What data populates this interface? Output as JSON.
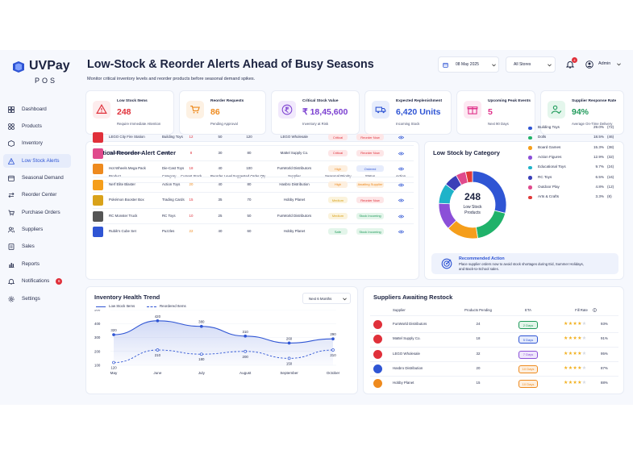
{
  "app": {
    "brand": "UVPay",
    "sub": "POS"
  },
  "header": {
    "title": "Low-Stock & Reorder Alerts Ahead of Busy Seasons",
    "subtitle": "Monitor critical inventory levels and reorder products before seasonal demand spikes.",
    "date": "08 May 2025",
    "store": "All Stores",
    "notif_count": "4",
    "user": "Admin"
  },
  "sidebar": {
    "items": [
      {
        "label": "Dashboard",
        "icon": "dashboard-icon"
      },
      {
        "label": "Products",
        "icon": "products-icon"
      },
      {
        "label": "Inventory",
        "icon": "inventory-icon"
      },
      {
        "label": "Low Stock Alerts",
        "icon": "alert-icon"
      },
      {
        "label": "Seasonal Demand",
        "icon": "calendar-icon"
      },
      {
        "label": "Reorder Center",
        "icon": "reorder-icon"
      },
      {
        "label": "Purchase Orders",
        "icon": "cart-icon"
      },
      {
        "label": "Suppliers",
        "icon": "users-icon"
      },
      {
        "label": "Sales",
        "icon": "sales-icon"
      },
      {
        "label": "Reports",
        "icon": "reports-icon"
      },
      {
        "label": "Notifications",
        "icon": "bell-icon",
        "badge": "6"
      },
      {
        "label": "Settings",
        "icon": "gear-icon"
      }
    ]
  },
  "kpis": [
    {
      "title": "Low Stock Items",
      "value": "248",
      "sub": "Require Immediate Attention",
      "color": "#e0303a",
      "bg": "#fdeced",
      "icon": "warning-icon"
    },
    {
      "title": "Reorder Requests",
      "value": "86",
      "sub": "Pending Approval",
      "color": "#ee8a1e",
      "bg": "#fdf1e3",
      "icon": "cart-icon"
    },
    {
      "title": "Critical Stock Value",
      "value": "₹ 18,45,600",
      "sub": "Inventory at Risk",
      "color": "#7b3fd0",
      "bg": "#f1e9fc",
      "icon": "rupee-icon"
    },
    {
      "title": "Expected Replenishment",
      "value": "6,420 Units",
      "sub": "Incoming Stock",
      "color": "#2f55d4",
      "bg": "#e7edfc",
      "icon": "truck-icon"
    },
    {
      "title": "Upcoming Peak Events",
      "value": "5",
      "sub": "Next 90 Days",
      "color": "#e0308a",
      "bg": "#fde8f2",
      "icon": "gift-icon"
    },
    {
      "title": "Supplier Response Rate",
      "value": "94%",
      "sub": "Average On-Time Delivery",
      "color": "#1f9a5a",
      "bg": "#e4f6ec",
      "icon": "person-check-icon"
    }
  ],
  "alerts": {
    "title": "Critical Reorder Alert Center",
    "headers": [
      "Product",
      "Category",
      "Current Stock",
      "Reorder Level",
      "Suggested Order Qty",
      "Supplier",
      "Seasonal Priority",
      "Status",
      "Action"
    ],
    "rows": [
      {
        "product": "LEGO City Fire Station",
        "category": "Building Toys",
        "stock": "12",
        "reorder": "50",
        "qty": "120",
        "supplier": "LEGO Wholesale",
        "priority": "Critical",
        "status": "Reorder Now",
        "stockColor": "#e0303a",
        "pc": "#e0303a",
        "pb": "#fde6e7",
        "sc": "#e0303a",
        "sbg": "#fde6e7"
      },
      {
        "product": "Barbie Dream House",
        "category": "Dolls",
        "stock": "8",
        "reorder": "30",
        "qty": "80",
        "supplier": "Mattel Supply Co.",
        "priority": "Critical",
        "status": "Reorder Now",
        "stockColor": "#e0303a",
        "pc": "#e0303a",
        "pb": "#fde6e7",
        "sc": "#e0303a",
        "sbg": "#fde6e7"
      },
      {
        "product": "Hot Wheels Mega Pack",
        "category": "Die-Cast Toys",
        "stock": "18",
        "reorder": "40",
        "qty": "100",
        "supplier": "FunWorld Distributors",
        "priority": "High",
        "status": "Ordered",
        "stockColor": "#e0303a",
        "pc": "#ee8a1e",
        "pb": "#fdefdf",
        "sc": "#2f55d4",
        "sbg": "#e6ecfc"
      },
      {
        "product": "Nerf Elite Blaster",
        "category": "Action Toys",
        "stock": "20",
        "reorder": "40",
        "qty": "80",
        "supplier": "Hasbro Distribution",
        "priority": "High",
        "status": "Awaiting Supplier",
        "stockColor": "#ee8a1e",
        "pc": "#ee8a1e",
        "pb": "#fdefdf",
        "sc": "#ee8a1e",
        "sbg": "#fdefdf"
      },
      {
        "product": "Pokémon Booster Box",
        "category": "Trading Cards",
        "stock": "15",
        "reorder": "35",
        "qty": "70",
        "supplier": "Hobby Planet",
        "priority": "Medium",
        "status": "Reorder Now",
        "stockColor": "#e0303a",
        "pc": "#d9a21a",
        "pb": "#fbf3dc",
        "sc": "#e0303a",
        "sbg": "#fde6e7"
      },
      {
        "product": "RC Monster Truck",
        "category": "RC Toys",
        "stock": "10",
        "reorder": "25",
        "qty": "50",
        "supplier": "FunWorld Distributors",
        "priority": "Medium",
        "status": "Stock Incoming",
        "stockColor": "#e0303a",
        "pc": "#d9a21a",
        "pb": "#fbf3dc",
        "sc": "#1f9a5a",
        "sbg": "#e3f5ea"
      },
      {
        "product": "Rubik's Cube Set",
        "category": "Puzzles",
        "stock": "22",
        "reorder": "40",
        "qty": "60",
        "supplier": "Hobby Planet",
        "priority": "Safe",
        "status": "Stock Incoming",
        "stockColor": "#ee8a1e",
        "pc": "#1f9a5a",
        "pb": "#e3f5ea",
        "sc": "#1f9a5a",
        "sbg": "#e3f5ea"
      }
    ]
  },
  "category": {
    "title": "Low Stock by Category",
    "center_value": "248",
    "center_label": "Low Stock Products",
    "items": [
      {
        "name": "Building Toys",
        "pct": "29.0%",
        "count": "(72)",
        "value": 29.0,
        "color": "#2f55d4"
      },
      {
        "name": "Dolls",
        "pct": "18.5%",
        "count": "(46)",
        "value": 18.5,
        "color": "#20b26a"
      },
      {
        "name": "Board Games",
        "pct": "15.3%",
        "count": "(38)",
        "value": 15.3,
        "color": "#f59e1b"
      },
      {
        "name": "Action Figures",
        "pct": "12.9%",
        "count": "(32)",
        "value": 12.9,
        "color": "#8b4fd8"
      },
      {
        "name": "Educational Toys",
        "pct": "9.7%",
        "count": "(24)",
        "value": 9.7,
        "color": "#1fb3c9"
      },
      {
        "name": "RC Toys",
        "pct": "6.5%",
        "count": "(16)",
        "value": 6.5,
        "color": "#3a3fb8"
      },
      {
        "name": "Outdoor Play",
        "pct": "4.8%",
        "count": "(12)",
        "value": 4.8,
        "color": "#e04a8c"
      },
      {
        "name": "Arts & Crafts",
        "pct": "3.3%",
        "count": "(8)",
        "value": 3.3,
        "color": "#e03a3a"
      }
    ],
    "rec_title": "Recommended Action",
    "rec_text": "Place supplier orders now to avoid stock shortages during Eid, Summer Holidays, and Back-to-School sales."
  },
  "trend": {
    "title": "Inventory Health Trend",
    "range": "Next 6 Months",
    "legend_low": "Low Stock Items",
    "legend_reorder": "Reordered Items"
  },
  "chart_data": {
    "type": "line",
    "x": [
      "May",
      "June",
      "July",
      "August",
      "September",
      "October"
    ],
    "series": [
      {
        "name": "Low Stock Items",
        "values": [
          320,
          420,
          380,
          310,
          260,
          290
        ]
      },
      {
        "name": "Reordered Items",
        "values": [
          120,
          210,
          180,
          200,
          150,
          210
        ]
      }
    ],
    "yticks": [
      "500",
      "400",
      "300",
      "200",
      "100"
    ],
    "ylim": [
      80,
      520
    ]
  },
  "suppliers": {
    "title": "Suppliers Awaiting Restock",
    "headers": [
      "Supplier",
      "Products Pending",
      "ETA",
      "Fill Rate"
    ],
    "rows": [
      {
        "name": "FunWorld Distributors",
        "pending": "24",
        "eta": "2 Days",
        "fill": "93%",
        "stars": 4,
        "etaColor": "#1f9a5a",
        "etaBg": "#e3f5ea",
        "logo": "#e0303a"
      },
      {
        "name": "Mattel Supply Co.",
        "pending": "18",
        "eta": "5 Days",
        "fill": "91%",
        "stars": 4,
        "etaColor": "#2f55d4",
        "etaBg": "#e6ecfc",
        "logo": "#e0303a"
      },
      {
        "name": "LEGO Wholesale",
        "pending": "32",
        "eta": "7 Days",
        "fill": "95%",
        "stars": 4,
        "etaColor": "#8b4fd8",
        "etaBg": "#efe7fb",
        "logo": "#e0303a"
      },
      {
        "name": "Hasbro Distribution",
        "pending": "20",
        "eta": "10 Days",
        "fill": "87%",
        "stars": 4,
        "etaColor": "#ee8a1e",
        "etaBg": "#fdefdf",
        "logo": "#2f55d4"
      },
      {
        "name": "Hobby Planet",
        "pending": "15",
        "eta": "10 Days",
        "fill": "88%",
        "stars": 4,
        "etaColor": "#ee8a1e",
        "etaBg": "#fdefdf",
        "logo": "#ee8a1e"
      }
    ]
  }
}
